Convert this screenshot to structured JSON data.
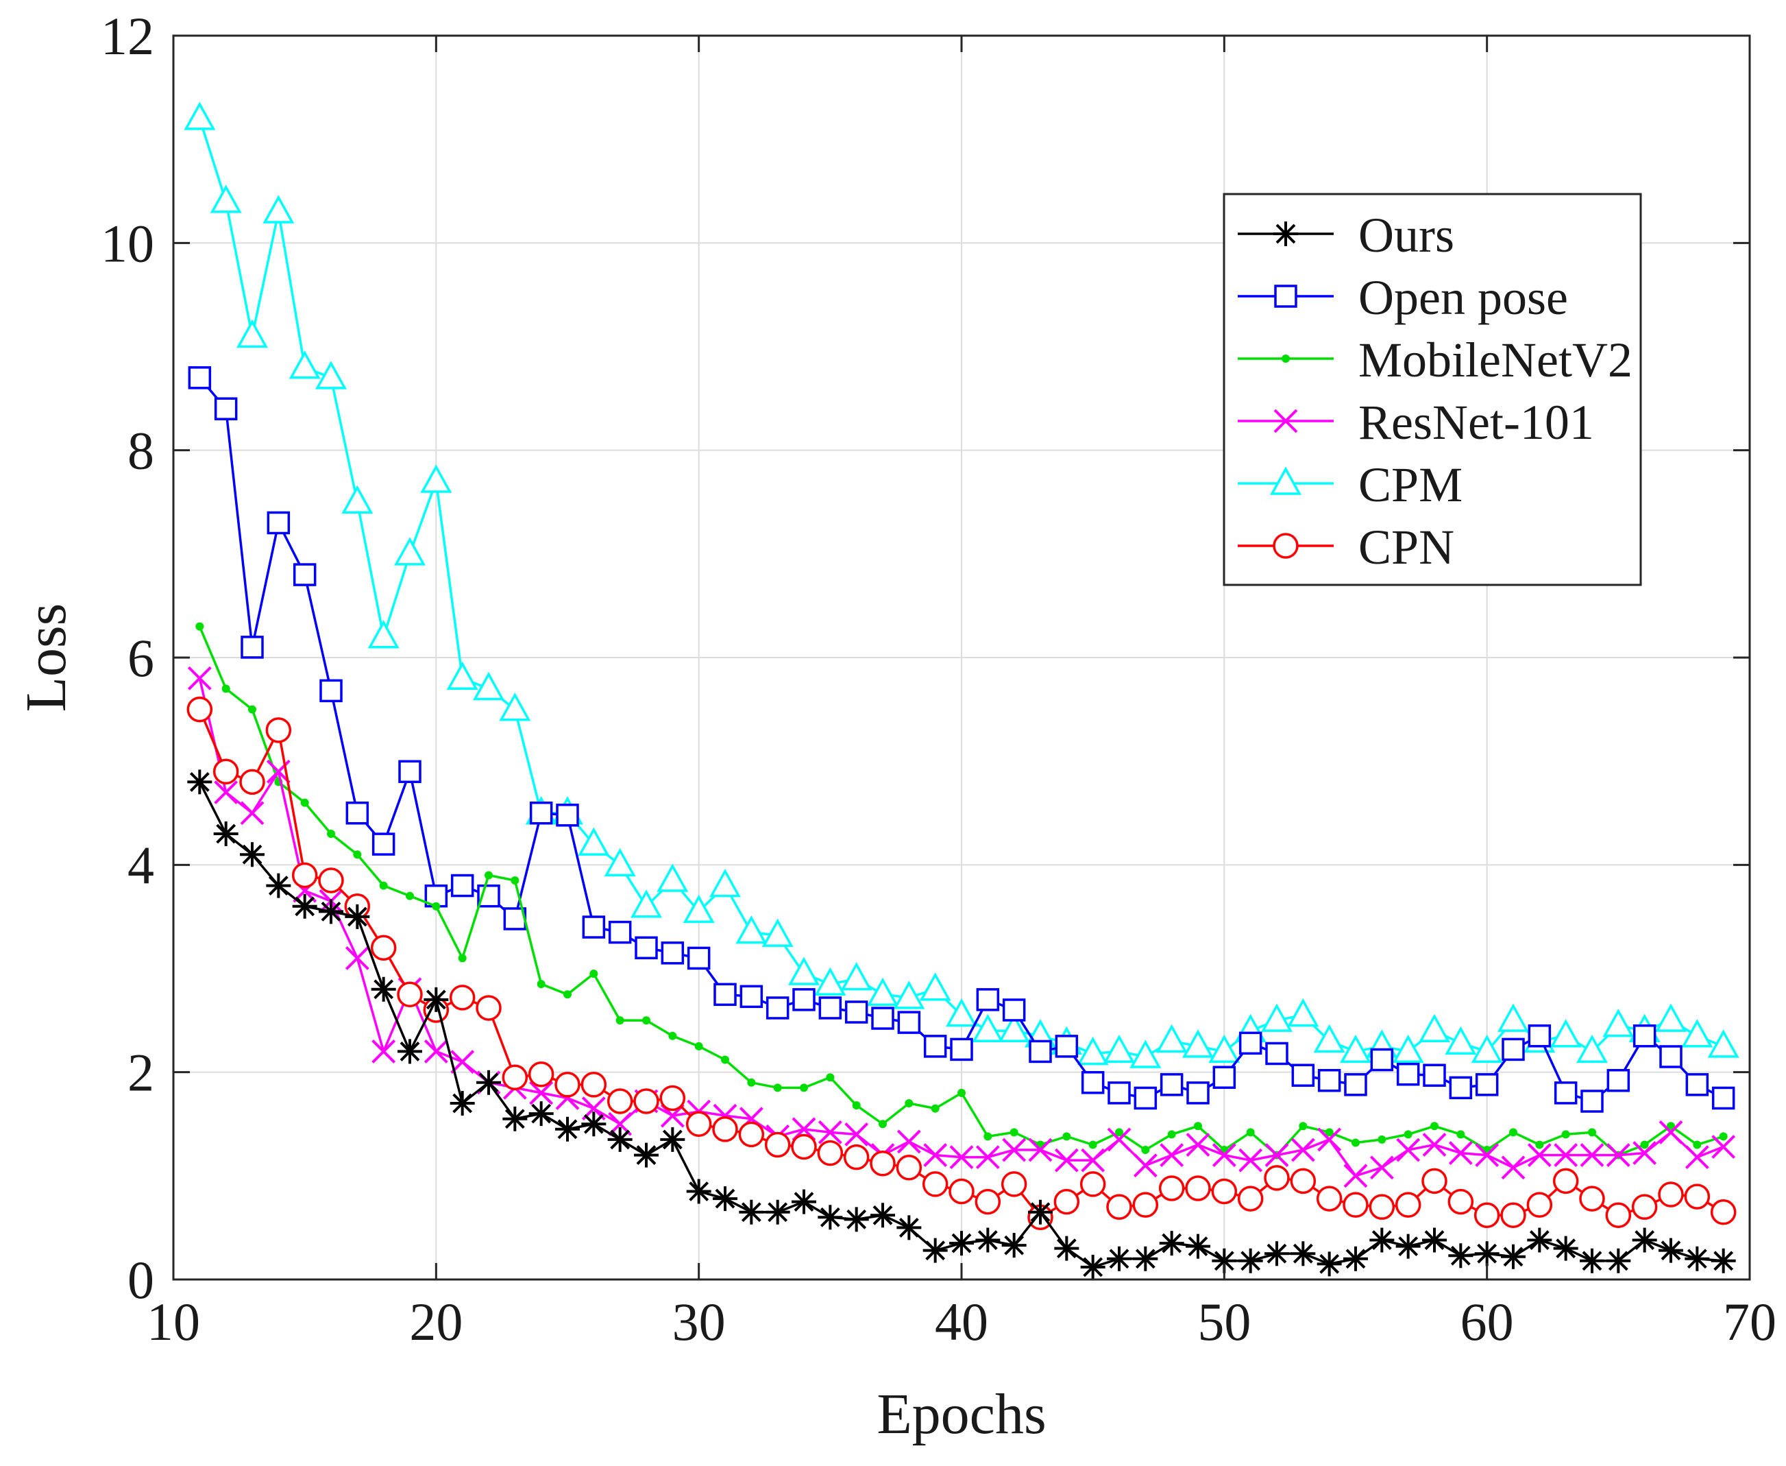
{
  "chart_data": {
    "type": "line",
    "title": "",
    "xlabel": "Epochs",
    "ylabel": "Loss",
    "xlim": [
      10,
      70
    ],
    "ylim": [
      0,
      12
    ],
    "xticks": [
      10,
      20,
      30,
      40,
      50,
      60,
      70
    ],
    "yticks": [
      0,
      2,
      4,
      6,
      8,
      10,
      12
    ],
    "grid": true,
    "legend_position": "top-right",
    "x": [
      11,
      12,
      13,
      14,
      15,
      16,
      17,
      18,
      19,
      20,
      21,
      22,
      23,
      24,
      25,
      26,
      27,
      28,
      29,
      30,
      31,
      32,
      33,
      34,
      35,
      36,
      37,
      38,
      39,
      40,
      41,
      42,
      43,
      44,
      45,
      46,
      47,
      48,
      49,
      50,
      51,
      52,
      53,
      54,
      55,
      56,
      57,
      58,
      59,
      60,
      61,
      62,
      63,
      64,
      65,
      66,
      67,
      68,
      69
    ],
    "series": [
      {
        "name": "Ours",
        "color": "#000000",
        "marker": "asterisk",
        "values": [
          4.8,
          4.3,
          4.1,
          3.8,
          3.6,
          3.55,
          3.5,
          2.8,
          2.2,
          2.7,
          1.7,
          1.9,
          1.55,
          1.6,
          1.45,
          1.5,
          1.35,
          1.2,
          1.35,
          0.85,
          0.78,
          0.65,
          0.65,
          0.75,
          0.6,
          0.58,
          0.62,
          0.5,
          0.28,
          0.35,
          0.38,
          0.33,
          0.65,
          0.3,
          0.12,
          0.2,
          0.2,
          0.35,
          0.32,
          0.18,
          0.18,
          0.25,
          0.25,
          0.15,
          0.2,
          0.38,
          0.32,
          0.38,
          0.23,
          0.25,
          0.22,
          0.38,
          0.3,
          0.18,
          0.18,
          0.38,
          0.28,
          0.2,
          0.18
        ]
      },
      {
        "name": "Open pose",
        "color": "#0000ff",
        "marker": "square",
        "values": [
          8.7,
          8.4,
          6.1,
          7.3,
          6.8,
          5.68,
          4.5,
          4.2,
          4.9,
          3.7,
          3.8,
          3.7,
          3.48,
          4.5,
          4.48,
          3.4,
          3.35,
          3.2,
          3.15,
          3.1,
          2.75,
          2.73,
          2.62,
          2.7,
          2.62,
          2.58,
          2.52,
          2.48,
          2.25,
          2.22,
          2.7,
          2.6,
          2.2,
          2.25,
          1.9,
          1.8,
          1.75,
          1.88,
          1.8,
          1.95,
          2.28,
          2.18,
          1.97,
          1.92,
          1.88,
          2.12,
          1.98,
          1.97,
          1.85,
          1.88,
          2.22,
          2.35,
          1.8,
          1.72,
          1.92,
          2.35,
          2.15,
          1.88,
          1.75
        ]
      },
      {
        "name": "MobileNetV2",
        "color": "#00dd00",
        "marker": "point",
        "values": [
          6.3,
          5.7,
          5.5,
          4.8,
          4.6,
          4.3,
          4.1,
          3.8,
          3.7,
          3.6,
          3.1,
          3.9,
          3.85,
          2.85,
          2.75,
          2.95,
          2.5,
          2.5,
          2.35,
          2.25,
          2.12,
          1.9,
          1.85,
          1.85,
          1.95,
          1.68,
          1.5,
          1.7,
          1.65,
          1.8,
          1.38,
          1.42,
          1.3,
          1.38,
          1.3,
          1.42,
          1.25,
          1.4,
          1.48,
          1.25,
          1.42,
          1.2,
          1.48,
          1.42,
          1.32,
          1.35,
          1.4,
          1.48,
          1.4,
          1.25,
          1.42,
          1.3,
          1.4,
          1.42,
          1.2,
          1.3,
          1.48,
          1.3,
          1.38
        ]
      },
      {
        "name": "ResNet-101",
        "color": "#ff00ff",
        "marker": "x",
        "values": [
          5.8,
          4.7,
          4.5,
          4.9,
          3.75,
          3.65,
          3.1,
          2.2,
          2.8,
          2.2,
          2.1,
          1.9,
          1.85,
          1.8,
          1.75,
          1.65,
          1.5,
          1.72,
          1.58,
          1.62,
          1.58,
          1.55,
          1.38,
          1.45,
          1.42,
          1.4,
          1.2,
          1.33,
          1.2,
          1.18,
          1.18,
          1.25,
          1.25,
          1.15,
          1.15,
          1.35,
          1.1,
          1.2,
          1.3,
          1.2,
          1.15,
          1.2,
          1.25,
          1.35,
          1.0,
          1.08,
          1.25,
          1.3,
          1.22,
          1.2,
          1.08,
          1.2,
          1.2,
          1.2,
          1.2,
          1.22,
          1.42,
          1.18,
          1.28
        ]
      },
      {
        "name": "CPM",
        "color": "#00ffff",
        "marker": "triangle",
        "values": [
          11.2,
          10.4,
          9.1,
          10.3,
          8.8,
          8.7,
          7.5,
          6.2,
          7.0,
          7.7,
          5.8,
          5.7,
          5.5,
          4.5,
          4.5,
          4.2,
          4.0,
          3.6,
          3.85,
          3.55,
          3.8,
          3.35,
          3.32,
          2.95,
          2.85,
          2.9,
          2.75,
          2.72,
          2.8,
          2.55,
          2.4,
          2.4,
          2.35,
          2.28,
          2.18,
          2.2,
          2.15,
          2.3,
          2.25,
          2.2,
          2.4,
          2.5,
          2.55,
          2.3,
          2.2,
          2.25,
          2.2,
          2.4,
          2.28,
          2.2,
          2.5,
          2.3,
          2.35,
          2.2,
          2.45,
          2.4,
          2.5,
          2.35,
          2.25
        ]
      },
      {
        "name": "CPN",
        "color": "#ff0000",
        "marker": "circle",
        "values": [
          5.5,
          4.9,
          4.8,
          5.3,
          3.9,
          3.85,
          3.6,
          3.2,
          2.75,
          2.6,
          2.72,
          2.62,
          1.95,
          1.98,
          1.88,
          1.88,
          1.72,
          1.72,
          1.75,
          1.5,
          1.45,
          1.4,
          1.3,
          1.28,
          1.22,
          1.18,
          1.12,
          1.08,
          0.92,
          0.85,
          0.75,
          0.92,
          0.6,
          0.75,
          0.92,
          0.7,
          0.72,
          0.88,
          0.88,
          0.85,
          0.78,
          0.98,
          0.95,
          0.78,
          0.72,
          0.7,
          0.72,
          0.95,
          0.75,
          0.62,
          0.62,
          0.72,
          0.95,
          0.78,
          0.62,
          0.7,
          0.82,
          0.8,
          0.65
        ]
      }
    ]
  }
}
